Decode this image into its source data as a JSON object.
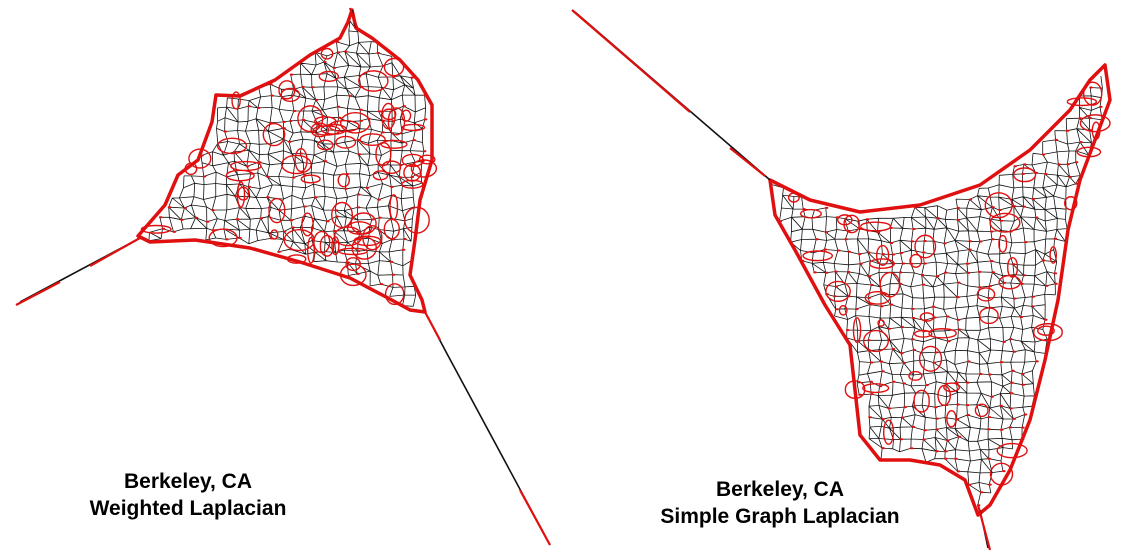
{
  "panels": [
    {
      "caption": {
        "line1": "Berkeley, CA",
        "line2": "Weighted Laplacian"
      }
    },
    {
      "caption": {
        "line1": "Berkeley, CA",
        "line2": "Simple Graph Laplacian"
      }
    }
  ],
  "colors": {
    "edge": "#111111",
    "vertex": "#e01010",
    "background": "#ffffff"
  }
}
